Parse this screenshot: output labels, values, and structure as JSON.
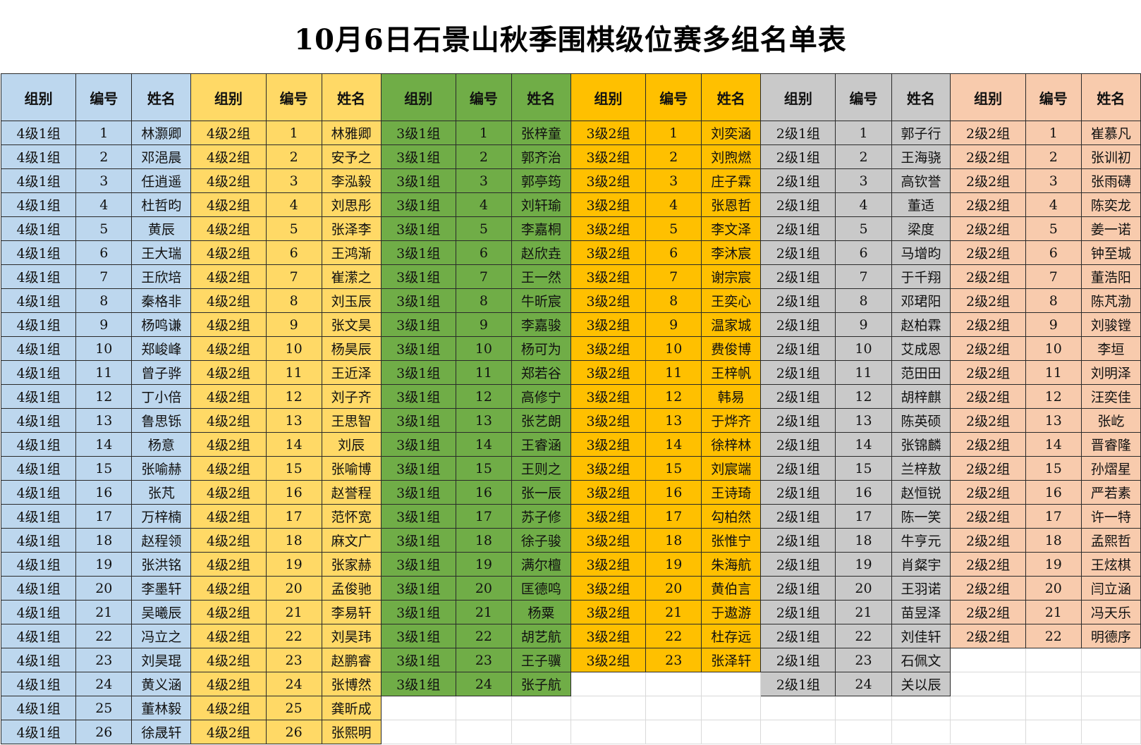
{
  "title": "10月6日石景山秋季围棋级位赛多组名单表",
  "headers": [
    "组别",
    "编号",
    "姓名"
  ],
  "groups": [
    {
      "name": "4级1组",
      "color": "#bdd7ee",
      "players": [
        "林灏卿",
        "邓浥晨",
        "任逍遥",
        "杜哲昀",
        "黄辰",
        "王大瑞",
        "王欣培",
        "秦格非",
        "杨鸣谦",
        "郑峻峰",
        "曾子骅",
        "丁小倍",
        "鲁思铄",
        "杨意",
        "张喻赫",
        "张芃",
        "万梓楠",
        "赵程领",
        "张洪铭",
        "李墨轩",
        "吴曦辰",
        "冯立之",
        "刘昊琨",
        "黄义涵",
        "董林毅",
        "徐晟轩"
      ]
    },
    {
      "name": "4级2组",
      "color": "#ffd966",
      "players": [
        "林雅卿",
        "安予之",
        "李泓毅",
        "刘思彤",
        "张泽李",
        "王鸿渐",
        "崔潆之",
        "刘玉辰",
        "张文昊",
        "杨昊辰",
        "王近泽",
        "刘子齐",
        "王思智",
        "刘辰",
        "张喻博",
        "赵誉程",
        "范怀宽",
        "麻文广",
        "张家赫",
        "孟俊驰",
        "李易轩",
        "刘昊玮",
        "赵鹏睿",
        "张博然",
        "龚昕成",
        "张熙明"
      ]
    },
    {
      "name": "3级1组",
      "color": "#70ad47",
      "players": [
        "张梓童",
        "郭齐治",
        "郭亭筠",
        "刘轩瑜",
        "李嘉桐",
        "赵欣垚",
        "王一然",
        "牛昕宸",
        "李嘉骏",
        "杨可为",
        "郑若谷",
        "高修宁",
        "张艺朗",
        "王睿涵",
        "王则之",
        "张一辰",
        "苏子修",
        "徐子骏",
        "满尔檀",
        "匡德鸣",
        "杨粟",
        "胡艺航",
        "王子骥",
        "张子航"
      ]
    },
    {
      "name": "3级2组",
      "color": "#ffc000",
      "players": [
        "刘奕涵",
        "刘煦燃",
        "庄子霖",
        "张恩哲",
        "李文泽",
        "李沐宸",
        "谢宗宸",
        "王奕心",
        "温家城",
        "费俊博",
        "王梓帆",
        "韩易",
        "于烨齐",
        "徐梓林",
        "刘宸端",
        "王诗琦",
        "勾柏然",
        "张惟宁",
        "朱海航",
        "黄伯言",
        "于遨游",
        "杜存远",
        "张泽轩"
      ]
    },
    {
      "name": "2级1组",
      "color": "#c9c9c9",
      "players": [
        "郭子行",
        "王海骁",
        "高钦誉",
        "董适",
        "梁度",
        "马增昀",
        "于千翔",
        "邓珺阳",
        "赵柏霖",
        "艾成恩",
        "范田田",
        "胡梓麒",
        "陈英硕",
        "张锦麟",
        "兰梓敖",
        "赵恒锐",
        "陈一笑",
        "牛亨元",
        "肖粲宇",
        "王羽诺",
        "苗昱泽",
        "刘佳轩",
        "石佩文",
        "关以辰"
      ]
    },
    {
      "name": "2级2组",
      "color": "#f8cbad",
      "players": [
        "崔慕凡",
        "张训初",
        "张雨礴",
        "陈奕龙",
        "姜一诺",
        "钟至城",
        "董浩阳",
        "陈芃渤",
        "刘骏镗",
        "李垣",
        "刘明泽",
        "汪奕佳",
        "张屹",
        "晋睿隆",
        "孙熠星",
        "严若素",
        "许一特",
        "孟熙哲",
        "王炫棋",
        "闫立涵",
        "冯天乐",
        "明德序"
      ]
    }
  ]
}
